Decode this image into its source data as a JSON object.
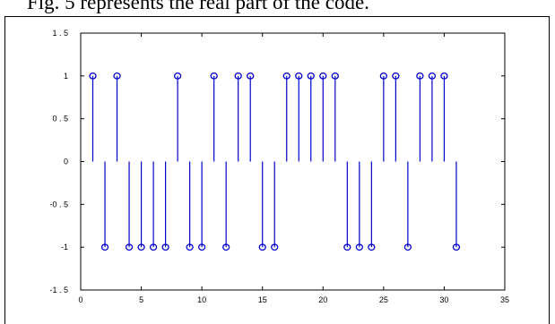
{
  "caption": "Fig. 5 represents the real part of the code.",
  "chart_data": {
    "type": "stem",
    "title": "",
    "xlabel": "",
    "ylabel": "",
    "xlim": [
      0,
      35
    ],
    "ylim": [
      -1.5,
      1.5
    ],
    "xticks": [
      "0",
      "5",
      "10",
      "15",
      "20",
      "25",
      "30",
      "35"
    ],
    "yticks": [
      "-1 . 5",
      "-1",
      "-0 . 5",
      "0",
      "0 . 5",
      "1",
      "1 . 5"
    ],
    "grid": false,
    "series": [
      {
        "color": "#0000cc",
        "marker": "circle",
        "x": [
          1,
          2,
          3,
          4,
          5,
          6,
          7,
          8,
          9,
          10,
          11,
          12,
          13,
          14,
          15,
          16,
          17,
          18,
          19,
          20,
          21,
          22,
          23,
          24,
          25,
          26,
          27,
          28,
          29,
          30,
          31
        ],
        "y": [
          1,
          -1,
          1,
          -1,
          -1,
          -1,
          -1,
          1,
          -1,
          -1,
          1,
          -1,
          1,
          1,
          -1,
          -1,
          1,
          1,
          1,
          1,
          1,
          -1,
          -1,
          -1,
          1,
          1,
          -1,
          1,
          1,
          1,
          -1
        ]
      }
    ]
  }
}
